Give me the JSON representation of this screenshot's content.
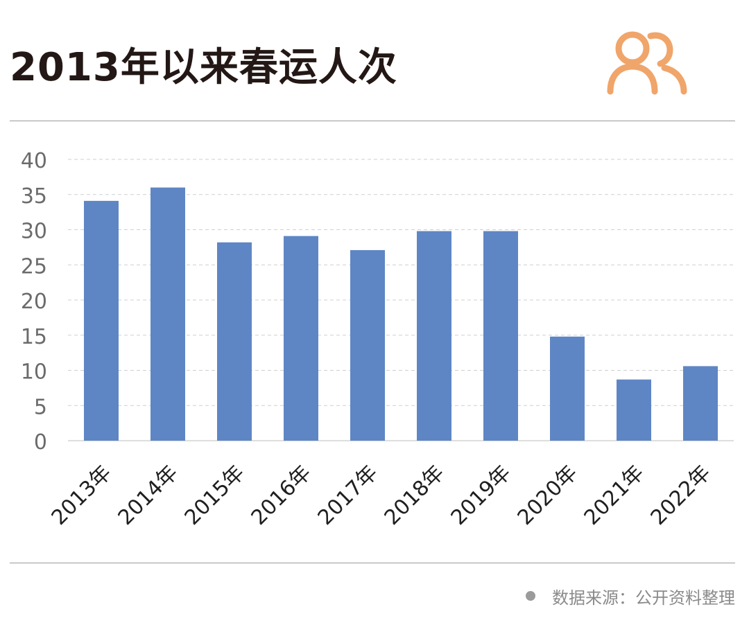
{
  "header": {
    "title": "2013年以来春运人次",
    "icon": "people-icon",
    "icon_color": "#F0A56A"
  },
  "footer": {
    "source_text": "数据来源：公开资料整理"
  },
  "colors": {
    "bar": "#5F86C4",
    "grid": "#cfcfcf",
    "axis_text": "#6b6b6b",
    "category_text": "#1f1f1f"
  },
  "chart_data": {
    "type": "bar",
    "categories": [
      "2013年",
      "2014年",
      "2015年",
      "2016年",
      "2017年",
      "2018年",
      "2019年",
      "2020年",
      "2021年",
      "2022年"
    ],
    "values": [
      34.1,
      36.0,
      28.2,
      29.1,
      27.1,
      29.8,
      29.8,
      14.8,
      8.7,
      10.6
    ],
    "title": "2013年以来春运人次",
    "xlabel": "",
    "ylabel": "",
    "ylim": [
      0,
      40
    ],
    "yticks": [
      0,
      5,
      10,
      15,
      20,
      25,
      30,
      35,
      40
    ],
    "grid": true,
    "legend": "none"
  }
}
